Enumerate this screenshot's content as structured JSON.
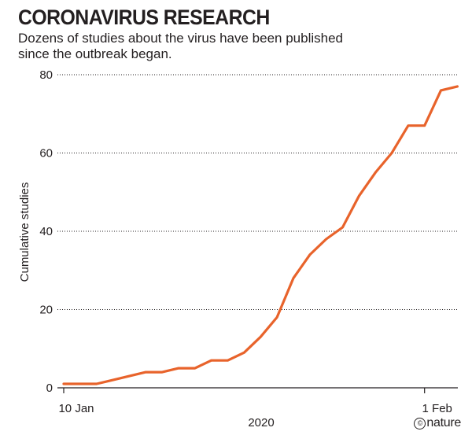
{
  "header": {
    "title": "CORONAVIRUS RESEARCH",
    "subtitle": "Dozens of studies about the virus have been published since the outbreak began."
  },
  "credit": {
    "symbol": "©",
    "label": "nature"
  },
  "chart_data": {
    "type": "line",
    "title": "CORONAVIRUS RESEARCH",
    "subtitle": "Dozens of studies about the virus have been published since the outbreak began.",
    "xlabel": "2020",
    "ylabel": "Cumulative studies",
    "ylim": [
      0,
      80
    ],
    "yticks": [
      0,
      20,
      40,
      60,
      80
    ],
    "xticks": [
      {
        "day": 0,
        "label": "10 Jan"
      },
      {
        "day": 22,
        "label": "1 Feb"
      }
    ],
    "grid": "horizontal dotted",
    "color": "#e8632b",
    "series": [
      {
        "name": "Cumulative studies",
        "x": [
          0,
          1,
          2,
          3,
          4,
          5,
          6,
          7,
          8,
          9,
          10,
          11,
          12,
          13,
          14,
          15,
          16,
          17,
          18,
          19,
          20,
          21,
          22,
          23,
          24
        ],
        "values": [
          1,
          1,
          1,
          2,
          3,
          4,
          4,
          5,
          5,
          7,
          7,
          9,
          13,
          18,
          28,
          34,
          38,
          41,
          49,
          55,
          60,
          67,
          67,
          76,
          77
        ]
      }
    ]
  }
}
